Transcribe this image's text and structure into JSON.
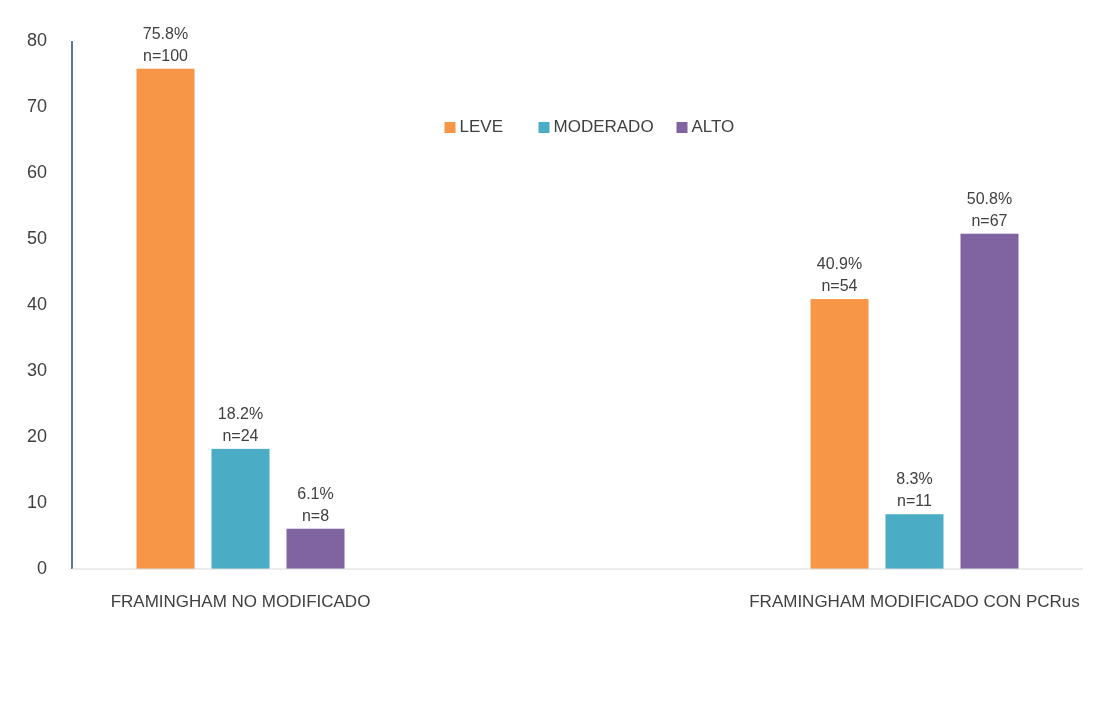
{
  "chart_data": {
    "type": "bar",
    "categories": [
      "FRAMINGHAM NO MODIFICADO",
      "FRAMINGHAM MODIFICADO CON PCRus"
    ],
    "series": [
      {
        "name": "LEVE",
        "color": "#f79646",
        "values": [
          75.8,
          40.9
        ],
        "value_labels": [
          "75.8%\nn=100",
          "40.9%\nn=54"
        ]
      },
      {
        "name": "MODERADO",
        "color": "#4bacc6",
        "values": [
          18.2,
          8.3
        ],
        "value_labels": [
          "18.2%\nn=24",
          "8.3%\nn=11"
        ]
      },
      {
        "name": "ALTO",
        "color": "#8064a2",
        "values": [
          6.1,
          50.8
        ],
        "value_labels": [
          "6.1%\nn=8",
          "50.8%\nn=67"
        ]
      }
    ],
    "ylim": [
      0,
      80
    ],
    "yticks": [
      0,
      10,
      20,
      30,
      40,
      50,
      60,
      70,
      80
    ],
    "grid": false,
    "legend": "top"
  }
}
